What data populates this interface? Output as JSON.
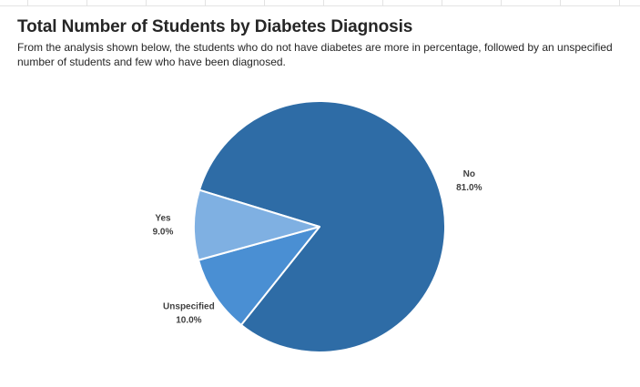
{
  "title": "Total Number of Students by Diabetes Diagnosis",
  "subtitle": "From the analysis shown below, the students who do not have diabetes are more in percentage, followed by an unspecified number of students and few who have been diagnosed.",
  "chart_data": {
    "type": "pie",
    "title": "Total Number of Students by Diabetes Diagnosis",
    "slices": [
      {
        "label": "No",
        "value": 81.0,
        "display": "81.0%",
        "color": "#2e6ca6"
      },
      {
        "label": "Unspecified",
        "value": 10.0,
        "display": "10.0%",
        "color": "#4a8fd3"
      },
      {
        "label": "Yes",
        "value": 9.0,
        "display": "9.0%",
        "color": "#7fb0e2"
      }
    ],
    "legend": "none",
    "data_labels": "outside"
  }
}
